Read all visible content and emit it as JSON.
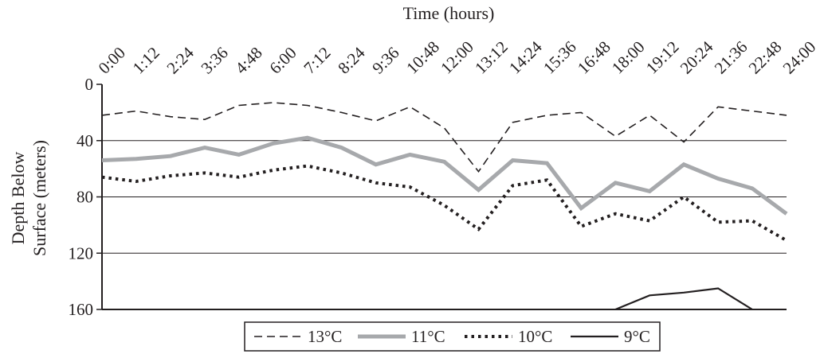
{
  "chart_data": {
    "type": "line",
    "title": "",
    "xlabel": "Time (hours)",
    "ylabel_lines": [
      "Depth Below",
      "Surface (meters)"
    ],
    "x_categories": [
      "0:00",
      "1:12",
      "2:24",
      "3:36",
      "4:48",
      "6:00",
      "7:12",
      "8:24",
      "9:36",
      "10:48",
      "12:00",
      "13:12",
      "14:24",
      "15:36",
      "16:48",
      "18:00",
      "19:12",
      "20:24",
      "21:36",
      "22:48",
      "24:00"
    ],
    "y_ticks": [
      "0",
      "40",
      "80",
      "120",
      "160"
    ],
    "ylim": [
      0,
      160
    ],
    "y_inverted": true,
    "grid": "horizontal at 40, 80, 120",
    "legend_position": "bottom",
    "series": [
      {
        "name": "13°C",
        "style": "dashed",
        "color": "#231f20",
        "values": [
          22,
          19,
          23,
          25,
          15,
          13,
          15,
          20,
          26,
          16,
          31,
          62,
          27,
          22,
          20,
          37,
          22,
          41,
          16,
          19,
          22
        ]
      },
      {
        "name": "11°C",
        "style": "thick-gray",
        "color": "#a7a9ac",
        "values": [
          54,
          53,
          51,
          45,
          50,
          42,
          38,
          45,
          57,
          50,
          55,
          75,
          54,
          56,
          88,
          70,
          76,
          57,
          67,
          74,
          92
        ]
      },
      {
        "name": "10°C",
        "style": "dotted",
        "color": "#231f20",
        "values": [
          66,
          69,
          65,
          63,
          66,
          61,
          58,
          63,
          70,
          73,
          86,
          103,
          72,
          68,
          101,
          92,
          97,
          80,
          98,
          97,
          111
        ]
      },
      {
        "name": "9°C",
        "style": "solid",
        "color": "#231f20",
        "values": [
          null,
          null,
          null,
          null,
          null,
          null,
          null,
          null,
          null,
          null,
          null,
          null,
          null,
          null,
          null,
          160,
          150,
          148,
          145,
          160,
          null
        ]
      }
    ]
  }
}
